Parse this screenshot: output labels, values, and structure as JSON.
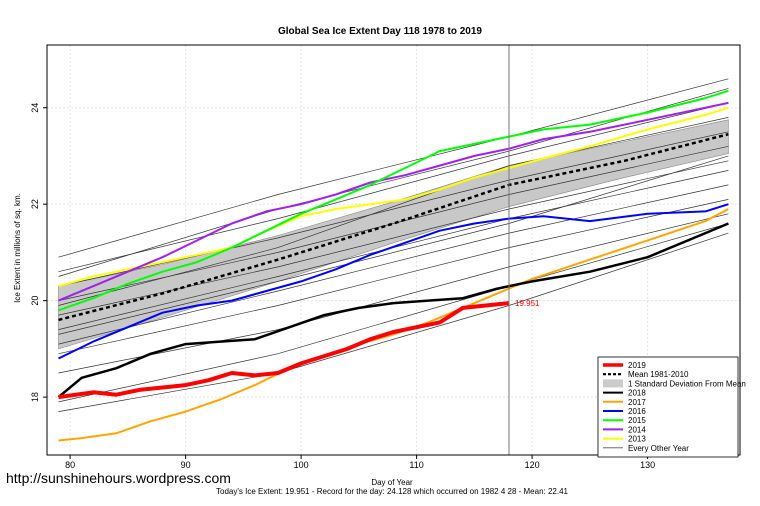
{
  "watermark": "http://sunshinehours.wordpress.com",
  "chart_data": {
    "type": "line",
    "title": "Global Sea Ice Extent Day 118 1978 to 2019",
    "xlabel": "Day of Year",
    "ylabel": "Ice Extent in millions of sq. km.",
    "xlim": [
      78,
      138
    ],
    "ylim": [
      16.8,
      25.3
    ],
    "xticks": [
      "80",
      "90",
      "100",
      "110",
      "120",
      "130"
    ],
    "yticks": [
      "18",
      "20",
      "22",
      "24"
    ],
    "grid": true,
    "legend_position": "bottom-right",
    "vline_day": 118,
    "current_value_label": "19.951",
    "footer": "Today's Ice Extent: 19.951  - Record for the day: 24.128 which occurred on 1982 4 28  - Mean: 22.41",
    "legend": [
      {
        "label": "2019",
        "color": "#ff0000",
        "style": "thick"
      },
      {
        "label": "Mean 1981-2010",
        "color": "#000000",
        "style": "dashed"
      },
      {
        "label": "1 Standard Deviation From Mean",
        "color": "#cccccc",
        "style": "box"
      },
      {
        "label": "2018",
        "color": "#000000",
        "style": "medium"
      },
      {
        "label": "2017",
        "color": "#ffa500",
        "style": "medium"
      },
      {
        "label": "2016",
        "color": "#0000ff",
        "style": "medium"
      },
      {
        "label": "2015",
        "color": "#00ff00",
        "style": "medium"
      },
      {
        "label": "2014",
        "color": "#a020f0",
        "style": "medium"
      },
      {
        "label": "2013",
        "color": "#ffff00",
        "style": "medium"
      },
      {
        "label": "Every Other Year",
        "color": "#555555",
        "style": "thin"
      }
    ],
    "mean": {
      "x": [
        79,
        88,
        98,
        108,
        118,
        128,
        137
      ],
      "y": [
        19.6,
        20.15,
        20.85,
        21.6,
        22.4,
        22.9,
        23.45
      ]
    },
    "std_band": {
      "x": [
        79,
        88,
        98,
        108,
        118,
        128,
        137
      ],
      "lower": [
        19.0,
        19.65,
        20.4,
        21.2,
        21.95,
        22.55,
        23.05
      ],
      "upper": [
        20.3,
        20.75,
        21.35,
        22.05,
        22.8,
        23.3,
        23.75
      ]
    },
    "series": [
      {
        "name": "2019",
        "color": "#ff0000",
        "width": 4,
        "x": [
          79,
          82,
          84,
          86,
          88,
          90,
          92,
          94,
          96,
          98,
          100,
          102,
          104,
          106,
          108,
          110,
          112,
          114,
          116,
          118
        ],
        "y": [
          18.0,
          18.1,
          18.05,
          18.15,
          18.2,
          18.25,
          18.35,
          18.5,
          18.45,
          18.5,
          18.7,
          18.85,
          19.0,
          19.2,
          19.35,
          19.45,
          19.55,
          19.85,
          19.9,
          19.95
        ]
      },
      {
        "name": "2018",
        "color": "#000000",
        "width": 2.5,
        "x": [
          79,
          81,
          84,
          87,
          90,
          93,
          96,
          99,
          102,
          105,
          108,
          111,
          114,
          117,
          120,
          125,
          130,
          135,
          137
        ],
        "y": [
          18.0,
          18.4,
          18.6,
          18.9,
          19.1,
          19.15,
          19.2,
          19.45,
          19.7,
          19.85,
          19.95,
          20.0,
          20.05,
          20.25,
          20.4,
          20.6,
          20.9,
          21.4,
          21.6
        ]
      },
      {
        "name": "2017",
        "color": "#ffa500",
        "width": 2,
        "x": [
          79,
          81,
          84,
          87,
          90,
          93,
          96,
          99,
          102,
          105,
          108,
          111,
          114,
          117,
          120,
          125,
          130,
          135,
          137
        ],
        "y": [
          17.1,
          17.15,
          17.25,
          17.5,
          17.7,
          17.95,
          18.25,
          18.6,
          18.85,
          19.1,
          19.3,
          19.55,
          19.85,
          20.15,
          20.45,
          20.85,
          21.25,
          21.65,
          21.9
        ]
      },
      {
        "name": "2016",
        "color": "#0000ff",
        "width": 2,
        "x": [
          79,
          82,
          85,
          88,
          91,
          94,
          97,
          100,
          103,
          106,
          109,
          112,
          115,
          118,
          121,
          125,
          130,
          135,
          137
        ],
        "y": [
          18.8,
          19.15,
          19.45,
          19.75,
          19.9,
          20.0,
          20.2,
          20.4,
          20.65,
          20.95,
          21.2,
          21.45,
          21.6,
          21.7,
          21.75,
          21.65,
          21.8,
          21.85,
          22.0
        ]
      },
      {
        "name": "2015",
        "color": "#00ff00",
        "width": 2,
        "x": [
          79,
          82,
          85,
          88,
          91,
          94,
          97,
          100,
          103,
          106,
          109,
          112,
          115,
          118,
          121,
          125,
          130,
          135,
          137
        ],
        "y": [
          19.8,
          20.05,
          20.35,
          20.6,
          20.8,
          21.1,
          21.45,
          21.8,
          22.1,
          22.4,
          22.75,
          23.1,
          23.25,
          23.4,
          23.55,
          23.65,
          23.9,
          24.2,
          24.35
        ]
      },
      {
        "name": "2014",
        "color": "#a020f0",
        "width": 2,
        "x": [
          79,
          82,
          85,
          88,
          91,
          94,
          97,
          100,
          103,
          106,
          109,
          112,
          115,
          118,
          121,
          125,
          130,
          135,
          137
        ],
        "y": [
          20.0,
          20.3,
          20.6,
          20.9,
          21.25,
          21.6,
          21.85,
          22.0,
          22.2,
          22.45,
          22.6,
          22.8,
          23.0,
          23.15,
          23.35,
          23.5,
          23.75,
          24.0,
          24.1
        ]
      },
      {
        "name": "2013",
        "color": "#ffff00",
        "width": 2,
        "x": [
          79,
          82,
          85,
          88,
          91,
          94,
          97,
          100,
          103,
          106,
          109,
          112,
          115,
          118,
          121,
          125,
          130,
          135,
          137
        ],
        "y": [
          20.3,
          20.5,
          20.65,
          20.8,
          20.95,
          21.1,
          21.45,
          21.75,
          21.9,
          22.0,
          22.1,
          22.3,
          22.55,
          22.75,
          22.95,
          23.2,
          23.55,
          23.85,
          24.0
        ]
      }
    ],
    "other_years": [
      {
        "x": [
          79,
          98,
          118,
          137
        ],
        "y": [
          20.6,
          21.7,
          23.0,
          24.1
        ]
      },
      {
        "x": [
          79,
          98,
          118,
          137
        ],
        "y": [
          20.3,
          21.3,
          22.5,
          23.5
        ]
      },
      {
        "x": [
          79,
          98,
          118,
          137
        ],
        "y": [
          20.0,
          21.0,
          22.2,
          23.2
        ]
      },
      {
        "x": [
          79,
          98,
          118,
          137
        ],
        "y": [
          19.7,
          20.7,
          21.9,
          22.9
        ]
      },
      {
        "x": [
          79,
          98,
          118,
          137
        ],
        "y": [
          19.4,
          20.5,
          21.7,
          22.7
        ]
      },
      {
        "x": [
          79,
          98,
          118,
          137
        ],
        "y": [
          19.1,
          20.2,
          21.4,
          22.4
        ]
      },
      {
        "x": [
          79,
          98,
          118,
          137
        ],
        "y": [
          18.9,
          19.9,
          21.1,
          22.1
        ]
      },
      {
        "x": [
          79,
          98,
          118,
          137
        ],
        "y": [
          18.5,
          19.4,
          20.7,
          21.8
        ]
      },
      {
        "x": [
          79,
          98,
          118,
          137
        ],
        "y": [
          17.9,
          18.9,
          20.3,
          21.6
        ]
      },
      {
        "x": [
          79,
          98,
          118,
          137
        ],
        "y": [
          17.7,
          18.5,
          19.9,
          21.4
        ]
      },
      {
        "x": [
          79,
          98,
          118,
          137
        ],
        "y": [
          20.9,
          22.2,
          23.4,
          24.6
        ]
      },
      {
        "x": [
          79,
          98,
          118,
          137
        ],
        "y": [
          20.5,
          21.9,
          23.1,
          24.4
        ]
      },
      {
        "x": [
          79,
          98,
          118,
          137
        ],
        "y": [
          19.9,
          21.1,
          22.8,
          23.8
        ]
      },
      {
        "x": [
          79,
          98,
          118,
          137
        ],
        "y": [
          19.3,
          20.4,
          21.6,
          23.0
        ]
      }
    ]
  }
}
